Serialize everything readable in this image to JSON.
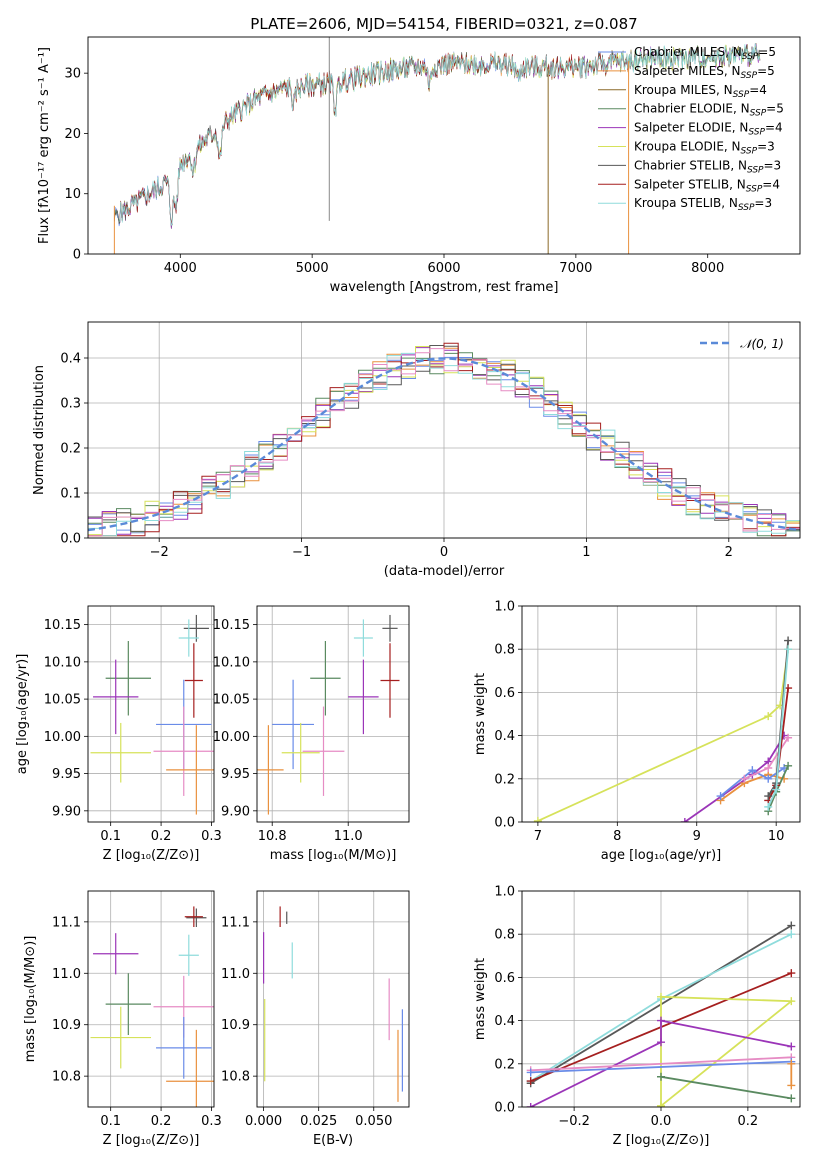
{
  "figure_title": "PLATE=2606, MJD=54154, FIBERID=0321, z=0.087",
  "colors": {
    "Chabrier MILES": "#6a8ce8",
    "Salpeter MILES": "#e9913f",
    "Kroupa MILES": "#8c6a28",
    "Chabrier ELODIE": "#5a8a60",
    "Salpeter ELODIE": "#9b35b8",
    "Kroupa ELODIE": "#d6e25a",
    "Chabrier STELIB": "#585858",
    "Salpeter STELIB": "#a51f1f",
    "Kroupa STELIB": "#8fdcdc",
    "Pink": "#e68cc4",
    "gaussian": "#5a8ad8"
  },
  "chart_data": [
    {
      "type": "line",
      "title": "PLATE=2606, MJD=54154, FIBERID=0321, z=0.087",
      "xlabel": "wavelength [Angstrom, rest frame]",
      "ylabel": "Flux [fλ10⁻¹⁷ erg cm⁻² s⁻¹ A⁻¹]",
      "xlim": [
        3300,
        8700
      ],
      "ylim": [
        0,
        36
      ],
      "xticks": [
        "4000",
        "5000",
        "6000",
        "7000",
        "8000"
      ],
      "yticks": [
        "0",
        "10",
        "20",
        "30"
      ],
      "legend_position": "right",
      "legend": [
        {
          "name": "Chabrier MILES",
          "sub": "N",
          "subtxt": "SSP",
          "val": "=5"
        },
        {
          "name": "Salpeter MILES",
          "sub": "N",
          "subtxt": "SSP",
          "val": "=5"
        },
        {
          "name": "Kroupa MILES",
          "sub": "N",
          "subtxt": "SSP",
          "val": "=4"
        },
        {
          "name": "Chabrier ELODIE",
          "sub": "N",
          "subtxt": "SSP",
          "val": "=5"
        },
        {
          "name": "Salpeter ELODIE",
          "sub": "N",
          "subtxt": "SSP",
          "val": "=4"
        },
        {
          "name": "Kroupa ELODIE",
          "sub": "N",
          "subtxt": "SSP",
          "val": "=3"
        },
        {
          "name": "Chabrier STELIB",
          "sub": "N",
          "subtxt": "SSP",
          "val": "=3"
        },
        {
          "name": "Salpeter STELIB",
          "sub": "N",
          "subtxt": "SSP",
          "val": "=4"
        },
        {
          "name": "Kroupa STELIB",
          "sub": "N",
          "subtxt": "SSP",
          "val": "=3"
        }
      ],
      "continuum_points": [
        [
          3500,
          6
        ],
        [
          3700,
          9
        ],
        [
          3900,
          12
        ],
        [
          4000,
          15
        ],
        [
          4200,
          19
        ],
        [
          4400,
          23
        ],
        [
          4600,
          26
        ],
        [
          4800,
          27.5
        ],
        [
          5000,
          28
        ],
        [
          5200,
          28.5
        ],
        [
          5400,
          29.5
        ],
        [
          5600,
          30.5
        ],
        [
          5800,
          31
        ],
        [
          6000,
          31.5
        ],
        [
          6200,
          31.5
        ],
        [
          6400,
          31.5
        ],
        [
          6600,
          31
        ],
        [
          6800,
          31
        ],
        [
          7000,
          31
        ],
        [
          7200,
          31.5
        ],
        [
          7400,
          32
        ],
        [
          7600,
          32.5
        ],
        [
          7800,
          32.5
        ],
        [
          8000,
          32.8
        ],
        [
          8200,
          33
        ],
        [
          8400,
          33
        ]
      ],
      "absorption_features": [
        [
          3933,
          7
        ],
        [
          3968,
          6
        ],
        [
          4101,
          3
        ],
        [
          4300,
          5
        ],
        [
          4861,
          3
        ],
        [
          5175,
          4
        ],
        [
          5890,
          3
        ],
        [
          6563,
          2
        ]
      ],
      "spike_lines": [
        [
          5130,
          5.5,
          36
        ],
        [
          6790,
          0,
          31
        ],
        [
          7400,
          0,
          32
        ]
      ]
    },
    {
      "type": "line",
      "xlabel": "(data-model)/error",
      "ylabel": "Normed distribution",
      "xlim": [
        -2.5,
        2.5
      ],
      "ylim": [
        0,
        0.48
      ],
      "xticks": [
        "−2",
        "−1",
        "0",
        "1",
        "2"
      ],
      "yticks": [
        "0.0",
        "0.1",
        "0.2",
        "0.3",
        "0.4"
      ],
      "legend": "𝒩(0, 1)",
      "legend_position": "upper right",
      "bin_width": 0.1,
      "series": [
        {
          "name": "Chabrier MILES",
          "seed": 11
        },
        {
          "name": "Salpeter MILES",
          "seed": 23
        },
        {
          "name": "Chabrier ELODIE",
          "seed": 37
        },
        {
          "name": "Salpeter ELODIE",
          "seed": 41
        },
        {
          "name": "Kroupa ELODIE",
          "seed": 53
        },
        {
          "name": "Chabrier STELIB",
          "seed": 67
        },
        {
          "name": "Salpeter STELIB",
          "seed": 71
        },
        {
          "name": "Kroupa STELIB",
          "seed": 83
        },
        {
          "name": "Pink",
          "seed": 97
        }
      ]
    },
    {
      "type": "scatter",
      "xlabel": "Z [log₁₀(Z/Z⊙)]",
      "ylabel": "age  [log₁₀(age/yr)]",
      "xlim": [
        0.055,
        0.305
      ],
      "ylim": [
        9.885,
        10.175
      ],
      "xticks": [
        0.1,
        0.2,
        0.3
      ],
      "yticks": [
        9.9,
        9.95,
        10.0,
        10.05,
        10.1,
        10.15
      ],
      "points": [
        {
          "c": "Chabrier STELIB",
          "x": 0.27,
          "y": 10.145,
          "xe": 0.025,
          "ye": 0.018
        },
        {
          "c": "Kroupa STELIB",
          "x": 0.255,
          "y": 10.132,
          "xe": 0.02,
          "ye": 0.025
        },
        {
          "c": "Salpeter STELIB",
          "x": 0.265,
          "y": 10.075,
          "xe": 0.018,
          "ye": 0.05
        },
        {
          "c": "Chabrier ELODIE",
          "x": 0.135,
          "y": 10.078,
          "xe": 0.045,
          "ye": 0.05
        },
        {
          "c": "Salpeter ELODIE",
          "x": 0.11,
          "y": 10.053,
          "xe": 0.045,
          "ye": 0.05
        },
        {
          "c": "Chabrier MILES",
          "x": 0.245,
          "y": 10.016,
          "xe": 0.055,
          "ye": 0.06
        },
        {
          "c": "Kroupa ELODIE",
          "x": 0.12,
          "y": 9.978,
          "xe": 0.06,
          "ye": 0.04
        },
        {
          "c": "Pink",
          "x": 0.245,
          "y": 9.98,
          "xe": 0.06,
          "ye": 0.06
        },
        {
          "c": "Salpeter MILES",
          "x": 0.27,
          "y": 9.955,
          "xe": 0.06,
          "ye": 0.06
        }
      ]
    },
    {
      "type": "scatter",
      "xlabel": "mass [log₁₀(M/M⊙)]",
      "xlim": [
        10.76,
        11.16
      ],
      "ylim": [
        9.885,
        10.175
      ],
      "xticks": [
        10.8,
        11.0
      ],
      "yticks": [
        9.9,
        9.95,
        10.0,
        10.05,
        10.1,
        10.15
      ],
      "points": [
        {
          "c": "Chabrier STELIB",
          "x": 11.11,
          "y": 10.145,
          "xe": 0.02,
          "ye": 0.018
        },
        {
          "c": "Kroupa STELIB",
          "x": 11.04,
          "y": 10.132,
          "xe": 0.025,
          "ye": 0.025
        },
        {
          "c": "Salpeter STELIB",
          "x": 11.11,
          "y": 10.075,
          "xe": 0.025,
          "ye": 0.05
        },
        {
          "c": "Chabrier ELODIE",
          "x": 10.94,
          "y": 10.078,
          "xe": 0.04,
          "ye": 0.05
        },
        {
          "c": "Salpeter ELODIE",
          "x": 11.04,
          "y": 10.053,
          "xe": 0.04,
          "ye": 0.05
        },
        {
          "c": "Chabrier MILES",
          "x": 10.855,
          "y": 10.016,
          "xe": 0.055,
          "ye": 0.06
        },
        {
          "c": "Kroupa ELODIE",
          "x": 10.875,
          "y": 9.978,
          "xe": 0.05,
          "ye": 0.04
        },
        {
          "c": "Pink",
          "x": 10.935,
          "y": 9.98,
          "xe": 0.055,
          "ye": 0.06
        },
        {
          "c": "Salpeter MILES",
          "x": 10.79,
          "y": 9.955,
          "xe": 0.04,
          "ye": 0.06
        }
      ]
    },
    {
      "type": "line",
      "xlabel": "age  [log₁₀(age/yr)]",
      "ylabel": "mass weight",
      "xlim": [
        6.8,
        10.3
      ],
      "ylim": [
        0,
        1
      ],
      "xticks": [
        7,
        8,
        9,
        10
      ],
      "yticks": [
        0.0,
        0.2,
        0.4,
        0.6,
        0.8,
        1.0
      ],
      "series": [
        {
          "c": "Kroupa ELODIE",
          "pts": [
            [
              7.0,
              0.005
            ],
            [
              9.9,
              0.49
            ],
            [
              10.05,
              0.54
            ],
            [
              10.15,
              0.8
            ]
          ]
        },
        {
          "c": "Salpeter ELODIE",
          "pts": [
            [
              8.85,
              0.0
            ],
            [
              9.7,
              0.22
            ],
            [
              9.9,
              0.28
            ],
            [
              10.1,
              0.4
            ]
          ]
        },
        {
          "c": "Salpeter MILES",
          "pts": [
            [
              9.3,
              0.1
            ],
            [
              9.6,
              0.18
            ],
            [
              9.9,
              0.22
            ],
            [
              10.1,
              0.2
            ]
          ]
        },
        {
          "c": "Chabrier MILES",
          "pts": [
            [
              9.3,
              0.12
            ],
            [
              9.7,
              0.24
            ],
            [
              9.9,
              0.2
            ],
            [
              10.1,
              0.25
            ]
          ]
        },
        {
          "c": "Pink",
          "pts": [
            [
              9.6,
              0.2
            ],
            [
              9.9,
              0.25
            ],
            [
              10.15,
              0.39
            ]
          ]
        },
        {
          "c": "Chabrier ELODIE",
          "pts": [
            [
              9.9,
              0.05
            ],
            [
              10.0,
              0.14
            ],
            [
              10.15,
              0.26
            ]
          ]
        },
        {
          "c": "Salpeter STELIB",
          "pts": [
            [
              9.9,
              0.1
            ],
            [
              10.0,
              0.17
            ],
            [
              10.15,
              0.62
            ]
          ]
        },
        {
          "c": "Chabrier STELIB",
          "pts": [
            [
              9.9,
              0.12
            ],
            [
              10.0,
              0.18
            ],
            [
              10.15,
              0.84
            ]
          ]
        },
        {
          "c": "Kroupa STELIB",
          "pts": [
            [
              9.9,
              0.07
            ],
            [
              10.0,
              0.15
            ],
            [
              10.15,
              0.8
            ]
          ]
        }
      ]
    },
    {
      "type": "scatter",
      "xlabel": "Z [log₁₀(Z/Z⊙)]",
      "ylabel": "mass [log₁₀(M/M⊙)]",
      "xlim": [
        0.055,
        0.305
      ],
      "ylim": [
        10.74,
        11.16
      ],
      "xticks": [
        0.1,
        0.2,
        0.3
      ],
      "yticks": [
        10.8,
        10.9,
        11.0,
        11.1
      ],
      "points": [
        {
          "c": "Chabrier STELIB",
          "x": 0.27,
          "y": 11.108,
          "xe": 0.02,
          "ye": 0.018
        },
        {
          "c": "Salpeter STELIB",
          "x": 0.265,
          "y": 11.11,
          "xe": 0.018,
          "ye": 0.02
        },
        {
          "c": "Salpeter ELODIE",
          "x": 0.11,
          "y": 11.038,
          "xe": 0.045,
          "ye": 0.04
        },
        {
          "c": "Kroupa STELIB",
          "x": 0.255,
          "y": 11.035,
          "xe": 0.02,
          "ye": 0.04
        },
        {
          "c": "Chabrier ELODIE",
          "x": 0.135,
          "y": 10.94,
          "xe": 0.045,
          "ye": 0.06
        },
        {
          "c": "Pink",
          "x": 0.245,
          "y": 10.935,
          "xe": 0.06,
          "ye": 0.06
        },
        {
          "c": "Kroupa ELODIE",
          "x": 0.12,
          "y": 10.875,
          "xe": 0.06,
          "ye": 0.06
        },
        {
          "c": "Chabrier MILES",
          "x": 0.245,
          "y": 10.855,
          "xe": 0.055,
          "ye": 0.06
        },
        {
          "c": "Salpeter MILES",
          "x": 0.27,
          "y": 10.79,
          "xe": 0.06,
          "ye": 0.1
        }
      ]
    },
    {
      "type": "scatter",
      "xlabel": "E(B-V)",
      "xlim": [
        -0.003,
        0.066
      ],
      "ylim": [
        10.74,
        11.16
      ],
      "xticks": [
        "0.000",
        "0.025",
        "0.050"
      ],
      "xtickvals": [
        0.0,
        0.025,
        0.05
      ],
      "yticks": [
        10.8,
        10.9,
        11.0,
        11.1
      ],
      "points": [
        {
          "c": "Chabrier STELIB",
          "x": 0.0105,
          "y": 11.108,
          "xe": 0,
          "ye": 0.012
        },
        {
          "c": "Salpeter STELIB",
          "x": 0.0075,
          "y": 11.11,
          "xe": 0,
          "ye": 0.02
        },
        {
          "c": "Salpeter ELODIE",
          "x": 0.0,
          "y": 11.03,
          "xe": 0,
          "ye": 0.05
        },
        {
          "c": "Kroupa STELIB",
          "x": 0.013,
          "y": 11.025,
          "xe": 0,
          "ye": 0.035
        },
        {
          "c": "Kroupa ELODIE",
          "x": 0.0005,
          "y": 10.87,
          "xe": 0,
          "ye": 0.08
        },
        {
          "c": "Pink",
          "x": 0.057,
          "y": 10.93,
          "xe": 0,
          "ye": 0.06
        },
        {
          "c": "Chabrier MILES",
          "x": 0.063,
          "y": 10.85,
          "xe": 0,
          "ye": 0.08
        },
        {
          "c": "Salpeter MILES",
          "x": 0.061,
          "y": 10.82,
          "xe": 0,
          "ye": 0.07
        }
      ]
    },
    {
      "type": "line",
      "xlabel": "Z [log₁₀(Z/Z⊙)]",
      "ylabel": "mass weight",
      "xlim": [
        -0.32,
        0.32
      ],
      "ylim": [
        0,
        1
      ],
      "xticks": [
        -0.2,
        0.0,
        0.2
      ],
      "xticklabels": [
        "−0.2",
        "0.0",
        "0.2"
      ],
      "yticks": [
        0.0,
        0.2,
        0.4,
        0.6,
        0.8,
        1.0
      ],
      "series": [
        {
          "c": "Chabrier STELIB",
          "pts": [
            [
              -0.3,
              0.11
            ],
            [
              0.3,
              0.84
            ]
          ]
        },
        {
          "c": "Kroupa STELIB",
          "pts": [
            [
              -0.3,
              0.12
            ],
            [
              0.0,
              0.5
            ],
            [
              0.3,
              0.8
            ]
          ]
        },
        {
          "c": "Salpeter STELIB",
          "pts": [
            [
              -0.3,
              0.12
            ],
            [
              0.3,
              0.62
            ]
          ]
        },
        {
          "c": "Kroupa ELODIE",
          "pts": [
            [
              0.0,
              0.005
            ],
            [
              0.3,
              0.49
            ],
            [
              0.0,
              0.51
            ],
            [
              0.0,
              0.005
            ]
          ]
        },
        {
          "c": "Salpeter ELODIE",
          "pts": [
            [
              -0.3,
              0.0
            ],
            [
              0.0,
              0.3
            ],
            [
              0.0,
              0.4
            ],
            [
              0.3,
              0.28
            ]
          ]
        },
        {
          "c": "Pink",
          "pts": [
            [
              -0.3,
              0.17
            ],
            [
              0.3,
              0.23
            ]
          ]
        },
        {
          "c": "Chabrier MILES",
          "pts": [
            [
              -0.3,
              0.16
            ],
            [
              0.3,
              0.21
            ]
          ]
        },
        {
          "c": "Chabrier ELODIE",
          "pts": [
            [
              0.0,
              0.14
            ],
            [
              0.3,
              0.04
            ]
          ]
        },
        {
          "c": "Salpeter MILES",
          "pts": [
            [
              0.3,
              0.1
            ],
            [
              0.3,
              0.2
            ]
          ]
        }
      ]
    }
  ]
}
